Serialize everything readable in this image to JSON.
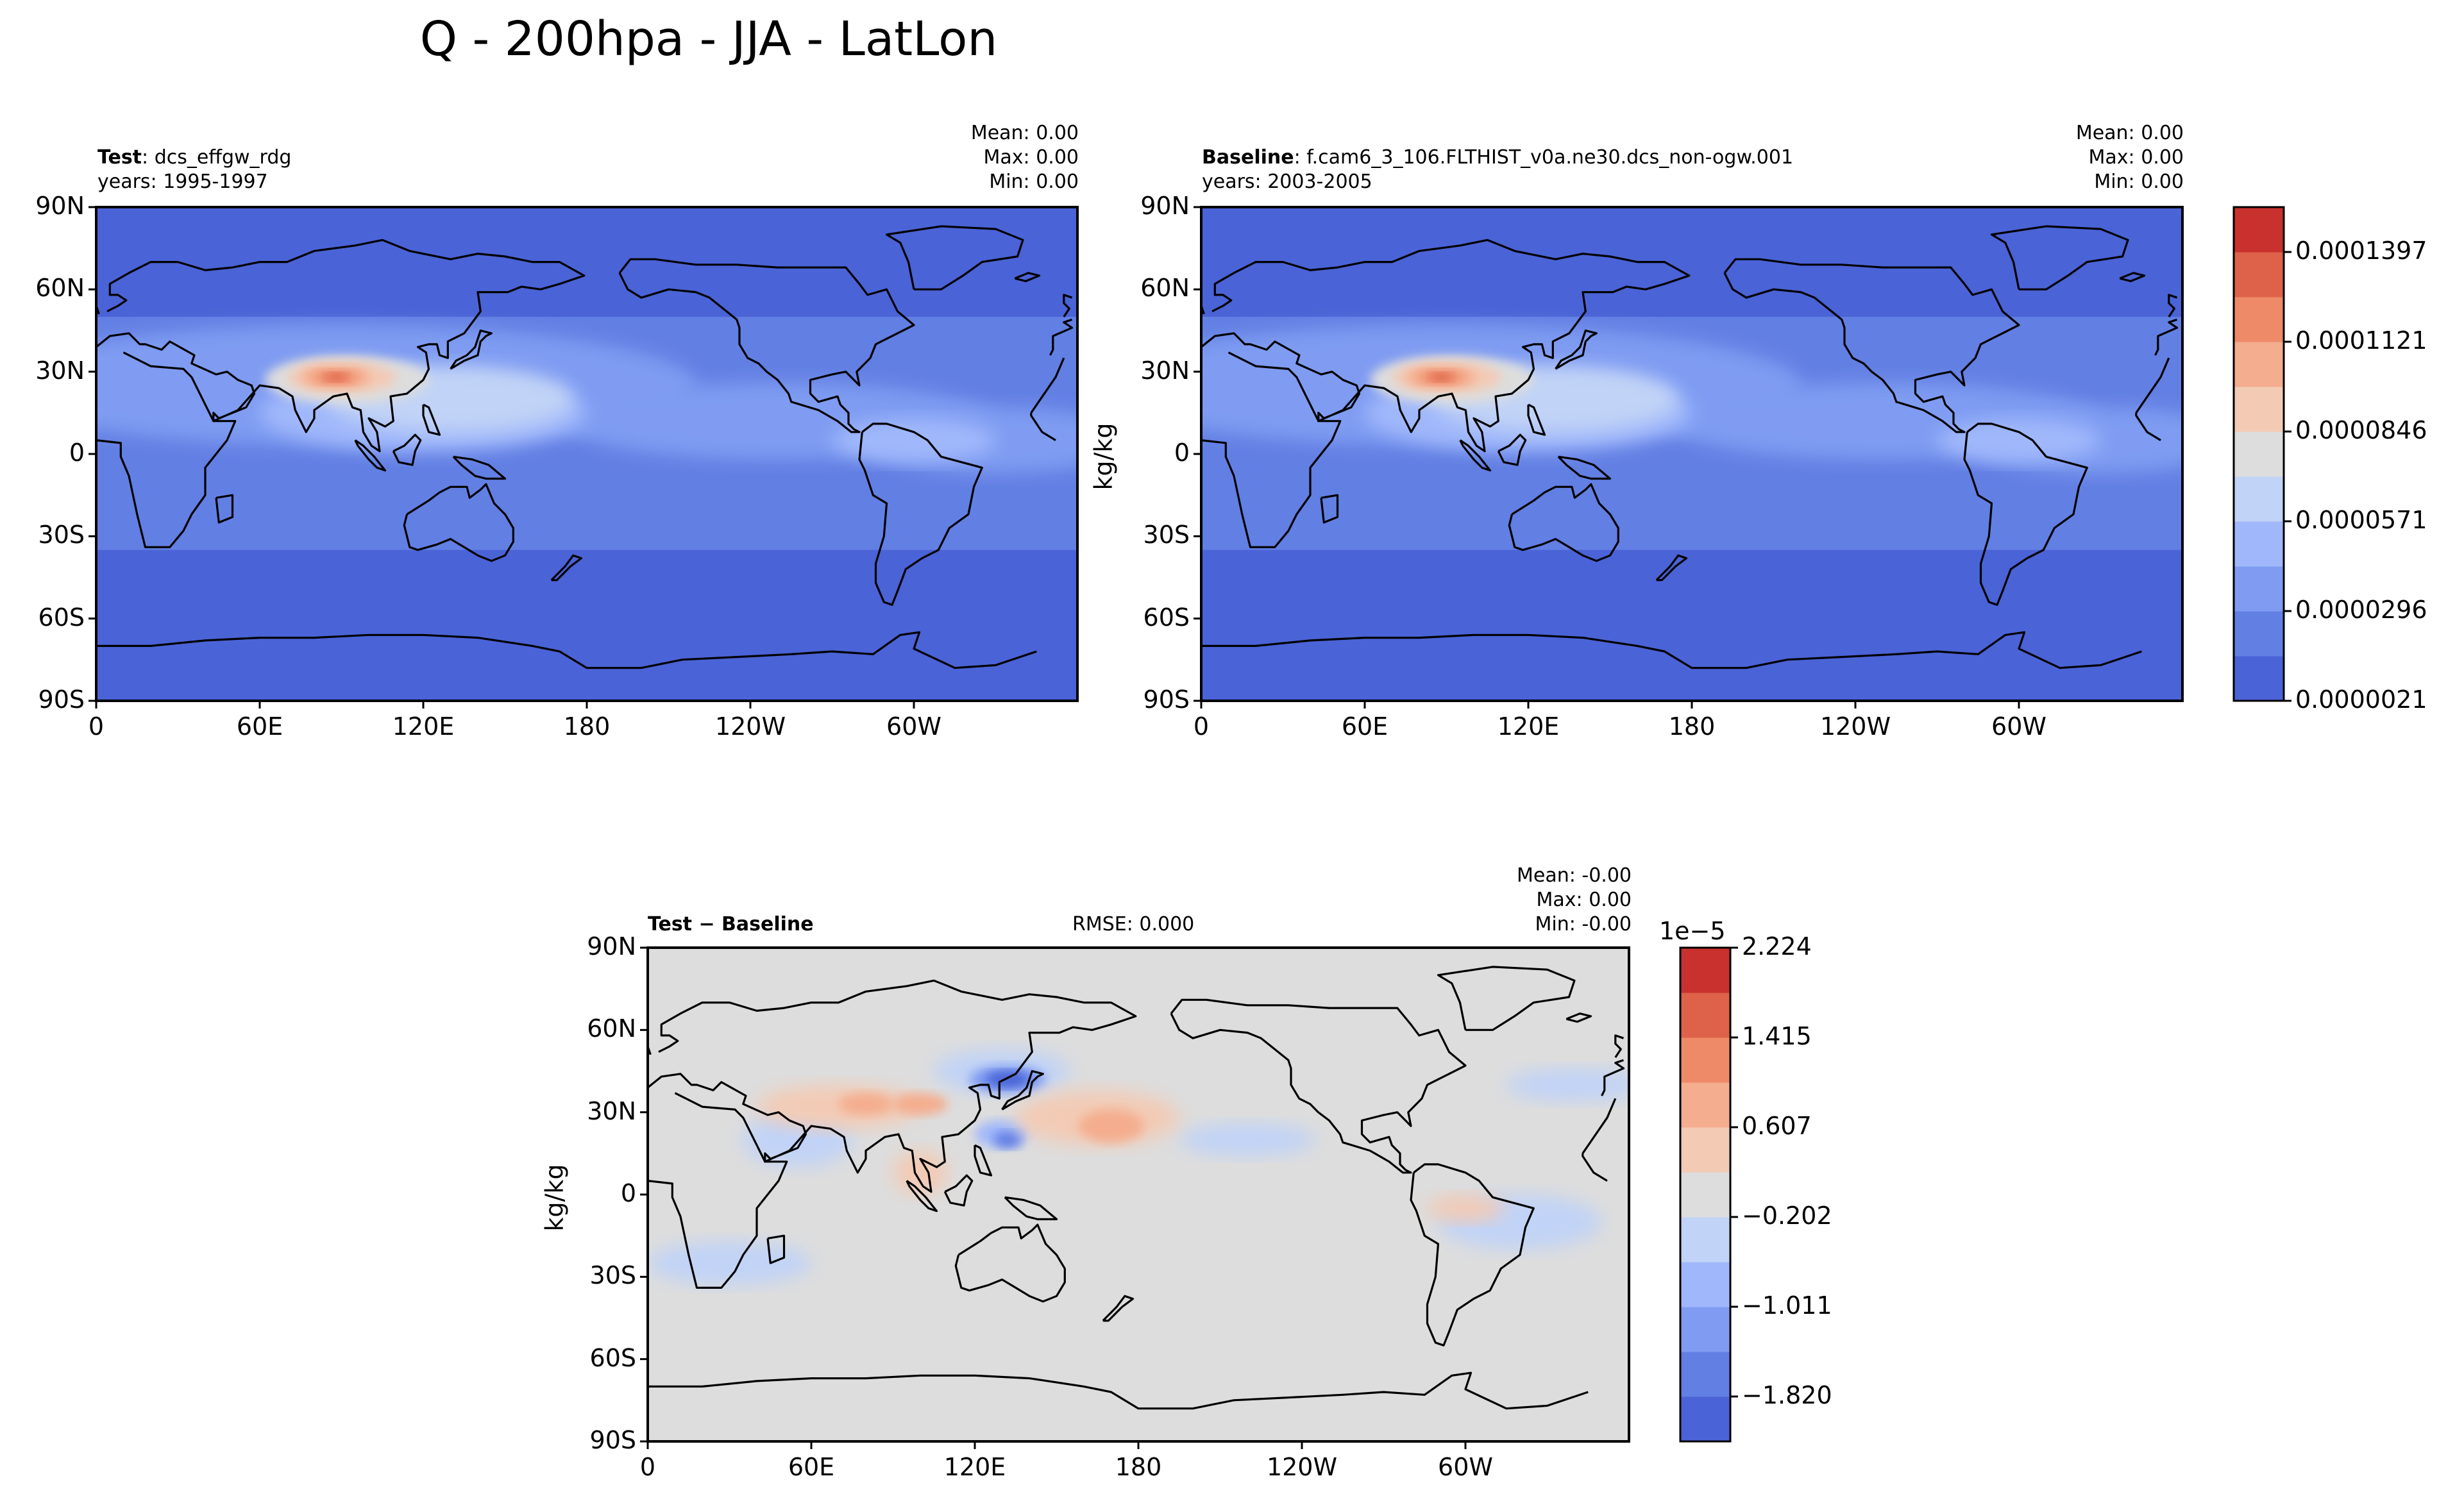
{
  "title": "Q - 200hpa - JJA - LatLon",
  "panels": [
    {
      "id": "test",
      "label": "Test",
      "label_sep": ": ",
      "case": "dcs_effgw_rdg",
      "years": "years: 1995-1997",
      "stats": {
        "mean": "Mean:  0.00",
        "max": "Max:  0.00",
        "min": "Min:  0.00"
      }
    },
    {
      "id": "baseline",
      "label": "Baseline",
      "label_sep": ": ",
      "case": "f.cam6_3_106.FLTHIST_v0a.ne30.dcs_non-ogw.001",
      "years": "years: 2003-2005",
      "stats": {
        "mean": "Mean:  0.00",
        "max": "Max:  0.00",
        "min": "Min:  0.00"
      }
    },
    {
      "id": "diff",
      "label": "Test − Baseline",
      "rmse": "RMSE: 0.000",
      "stats": {
        "mean": "Mean: -0.00",
        "max": "Max:  0.00",
        "min": "Min: -0.00"
      }
    }
  ],
  "ylabel": "kg/kg",
  "chart_data": [
    {
      "type": "heatmap",
      "subtype": "filled-contour-map",
      "panel": "test",
      "x_ticks": [
        "0",
        "60E",
        "120E",
        "180",
        "120W",
        "60W"
      ],
      "y_ticks": [
        "90N",
        "60N",
        "30N",
        "0",
        "30S",
        "60S",
        "90S"
      ],
      "xlim": [
        0,
        360
      ],
      "ylim": [
        -90,
        90
      ],
      "colorbar": "shared-absolute"
    },
    {
      "type": "heatmap",
      "subtype": "filled-contour-map",
      "panel": "baseline",
      "x_ticks": [
        "0",
        "60E",
        "120E",
        "180",
        "120W",
        "60W"
      ],
      "y_ticks": [
        "90N",
        "60N",
        "30N",
        "0",
        "30S",
        "60S",
        "90S"
      ],
      "xlim": [
        0,
        360
      ],
      "ylim": [
        -90,
        90
      ],
      "colorbar": {
        "ticks": [
          "0.0000021",
          "0.0000296",
          "0.0000571",
          "0.0000846",
          "0.0001121",
          "0.0001397"
        ],
        "colors": [
          "#4a63d6",
          "#627fe3",
          "#7f9cf2",
          "#a0b8fb",
          "#c1d3f6",
          "#dddddd",
          "#f3cbb5",
          "#f4ad8e",
          "#ee8a68",
          "#de6249",
          "#c8312d"
        ]
      }
    },
    {
      "type": "heatmap",
      "subtype": "filled-contour-map",
      "panel": "diff",
      "x_ticks": [
        "0",
        "60E",
        "120E",
        "180",
        "120W",
        "60W"
      ],
      "y_ticks": [
        "90N",
        "60N",
        "30N",
        "0",
        "30S",
        "60S",
        "90S"
      ],
      "xlim": [
        0,
        360
      ],
      "ylim": [
        -90,
        90
      ],
      "colorbar": {
        "scale_label": "1e−5",
        "ticks": [
          "2.224",
          "1.415",
          "0.607",
          "−0.202",
          "−1.011",
          "−1.820"
        ],
        "colors": [
          "#4a63d6",
          "#627fe3",
          "#7f9cf2",
          "#a0b8fb",
          "#c1d3f6",
          "#dddddd",
          "#f3cbb5",
          "#f4ad8e",
          "#ee8a68",
          "#de6249",
          "#c8312d"
        ]
      }
    }
  ]
}
